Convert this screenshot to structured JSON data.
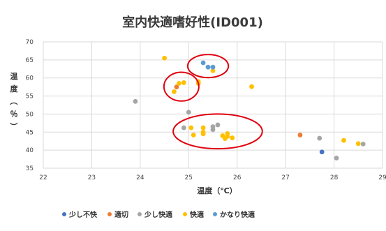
{
  "chart_data": {
    "type": "scatter",
    "title": "室内快適嗜好性(ID001)",
    "xlabel": "温度（℃）",
    "ylabel_chars": [
      "温",
      "度",
      "（",
      "％",
      "）"
    ],
    "xlim": [
      22,
      29
    ],
    "ylim": [
      35,
      70
    ],
    "x_ticks": [
      22,
      23,
      24,
      25,
      26,
      27,
      28,
      29
    ],
    "y_ticks": [
      35,
      40,
      45,
      50,
      55,
      60,
      65,
      70
    ],
    "grid": true,
    "legend_position": "bottom",
    "series": [
      {
        "name": "少し不快",
        "color": "#4472C4",
        "points": [
          [
            27.75,
            39.5
          ]
        ]
      },
      {
        "name": "適切",
        "color": "#ED7D31",
        "points": [
          [
            24.75,
            57.5
          ],
          [
            27.3,
            44.2
          ]
        ]
      },
      {
        "name": "少し快適",
        "color": "#A5A5A5",
        "points": [
          [
            23.9,
            53.5
          ],
          [
            24.9,
            46.2
          ],
          [
            25.0,
            50.5
          ],
          [
            25.5,
            46.5
          ],
          [
            25.5,
            45.7
          ],
          [
            25.6,
            47.0
          ],
          [
            27.7,
            43.3
          ],
          [
            28.05,
            37.8
          ],
          [
            28.6,
            41.7
          ]
        ]
      },
      {
        "name": "快適",
        "color": "#FFC000",
        "points": [
          [
            24.5,
            65.5
          ],
          [
            24.7,
            56.2
          ],
          [
            24.8,
            58.5
          ],
          [
            24.9,
            58.7
          ],
          [
            25.2,
            59.0
          ],
          [
            25.2,
            58.5
          ],
          [
            25.5,
            62.0
          ],
          [
            26.3,
            57.6
          ],
          [
            25.05,
            46.2
          ],
          [
            25.1,
            44.2
          ],
          [
            25.3,
            46.2
          ],
          [
            25.3,
            45.0
          ],
          [
            25.3,
            44.5
          ],
          [
            25.7,
            44.0
          ],
          [
            25.8,
            44.6
          ],
          [
            25.8,
            43.8
          ],
          [
            25.9,
            43.4
          ],
          [
            25.75,
            43.2
          ],
          [
            28.2,
            42.7
          ],
          [
            28.5,
            41.8
          ]
        ]
      },
      {
        "name": "かなり快適",
        "color": "#5B9BD5",
        "points": [
          [
            25.3,
            64.2
          ],
          [
            25.4,
            63.0
          ],
          [
            25.5,
            63.0
          ]
        ]
      }
    ],
    "annotations": [
      {
        "shape": "ellipse",
        "color": "#E0000F",
        "center": [
          25.4,
          63.3
        ],
        "rx_data": 0.42,
        "ry_data": 3.2
      },
      {
        "shape": "ellipse",
        "color": "#E0000F",
        "center": [
          24.85,
          57.6
        ],
        "rx_data": 0.36,
        "ry_data": 4.0
      },
      {
        "shape": "ellipse",
        "color": "#E0000F",
        "center": [
          25.6,
          45.2
        ],
        "rx_data": 0.92,
        "ry_data": 4.8
      }
    ]
  }
}
